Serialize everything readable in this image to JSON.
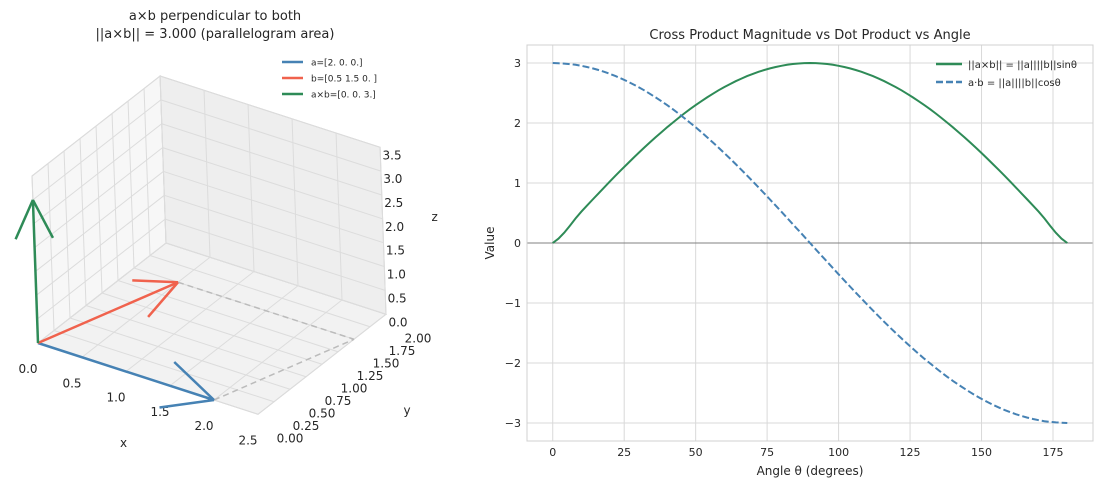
{
  "chart_data": [
    {
      "type": "3d-quiver",
      "title": "a×b perpendicular to both",
      "subtitle": "||a×b|| = 3.000 (parallelogram area)",
      "xlabel": "x",
      "ylabel": "y",
      "zlabel": "z",
      "xlim": [
        0,
        2.5
      ],
      "ylim": [
        0,
        2
      ],
      "zlim": [
        0,
        3.5
      ],
      "xticks": [
        "0.0",
        "0.5",
        "1.0",
        "1.5",
        "2.0",
        "2.5"
      ],
      "yticks": [
        "0.00",
        "0.25",
        "0.50",
        "0.75",
        "1.00",
        "1.25",
        "1.50",
        "1.75",
        "2.00"
      ],
      "zticks": [
        "0.0",
        "0.5",
        "1.0",
        "1.5",
        "2.0",
        "2.5",
        "3.0",
        "3.5"
      ],
      "vectors": [
        {
          "name": "a=[2. 0. 0.]",
          "value": [
            2,
            0,
            0
          ],
          "color": "#4682b4"
        },
        {
          "name": "b=[0.5 1.5 0. ]",
          "value": [
            0.5,
            1.5,
            0
          ],
          "color": "#f0624d"
        },
        {
          "name": "a×b=[0. 0. 3.]",
          "value": [
            0,
            0,
            3
          ],
          "color": "#2e8b57"
        }
      ],
      "parallelogram_color": "#bbbbbb",
      "legend": "top-right"
    },
    {
      "type": "line",
      "title": "Cross Product Magnitude vs Dot Product vs Angle",
      "xlabel": "Angle θ (degrees)",
      "ylabel": "Value",
      "xlim": [
        -9,
        189
      ],
      "ylim": [
        -3.3,
        3.3
      ],
      "xticks": [
        "0",
        "25",
        "50",
        "75",
        "100",
        "125",
        "150",
        "175"
      ],
      "yticks": [
        "−3",
        "−2",
        "−1",
        "0",
        "1",
        "2",
        "3"
      ],
      "grid": true,
      "legend": "top-right",
      "x": [
        0,
        10,
        20,
        30,
        40,
        50,
        60,
        70,
        80,
        90,
        100,
        110,
        120,
        130,
        140,
        150,
        160,
        170,
        180
      ],
      "series": [
        {
          "name": "||a×b|| = ||a||||b||sinθ",
          "style": "solid",
          "color": "#2e8b57",
          "values": [
            0,
            0.521,
            1.026,
            1.5,
            1.928,
            2.298,
            2.598,
            2.819,
            2.954,
            3,
            2.954,
            2.819,
            2.598,
            2.298,
            1.928,
            1.5,
            1.026,
            0.521,
            0
          ]
        },
        {
          "name": "a·b = ||a||||b||cosθ",
          "style": "dashed",
          "color": "#4682b4",
          "values": [
            3,
            2.954,
            2.819,
            2.598,
            2.298,
            1.928,
            1.5,
            1.026,
            0.521,
            0,
            -0.521,
            -1.026,
            -1.5,
            -1.928,
            -2.298,
            -2.598,
            -2.819,
            -2.954,
            -3
          ]
        }
      ]
    }
  ]
}
